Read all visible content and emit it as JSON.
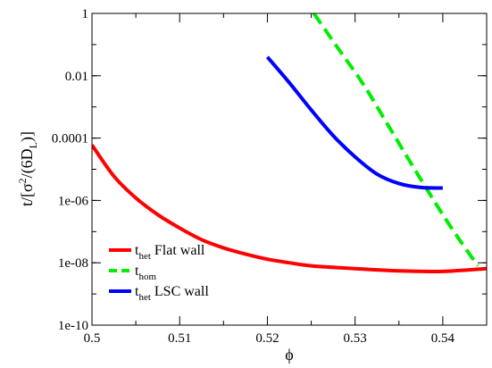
{
  "chart_data": {
    "type": "line",
    "xlabel": "ϕ",
    "ylabel": {
      "prefix": "t/[σ",
      "sup": "2",
      "middle": "/(6D",
      "sub": "L",
      "suffix": ")]"
    },
    "xlim": [
      0.5,
      0.545
    ],
    "ylim": [
      1e-10,
      1
    ],
    "yscale": "log",
    "x_ticks": [
      0.5,
      0.51,
      0.52,
      0.53,
      0.54
    ],
    "x_tick_labels": [
      "0.5",
      "0.51",
      "0.52",
      "0.53",
      "0.54"
    ],
    "y_ticks": [
      1e-10,
      1e-08,
      1e-06,
      0.0001,
      0.01,
      1
    ],
    "y_tick_labels": [
      "1e-10",
      "1e-08",
      "1e-06",
      "0.0001",
      "0.01",
      "1"
    ],
    "grid": false,
    "legend_position": "bottom-left",
    "series": [
      {
        "name": "Flat wall",
        "name_prefix": "t",
        "name_sub": "het",
        "color": "#ff0000",
        "dash": "solid",
        "x": [
          0.5,
          0.5025,
          0.505,
          0.5075,
          0.51,
          0.5125,
          0.515,
          0.5175,
          0.52,
          0.5225,
          0.525,
          0.53,
          0.535,
          0.54,
          0.545
        ],
        "y": [
          6e-05,
          6e-06,
          1.2e-06,
          3.5e-07,
          1.3e-07,
          5.5e-08,
          3e-08,
          1.9e-08,
          1.3e-08,
          1e-08,
          8e-09,
          6.5e-09,
          5.5e-09,
          5.3e-09,
          6.5e-09
        ]
      },
      {
        "name": "",
        "name_prefix": "t",
        "name_sub": "hom",
        "color": "#00ee00",
        "dash": "dashed",
        "x": [
          0.5253,
          0.528,
          0.531,
          0.534,
          0.537,
          0.54,
          0.542,
          0.544
        ],
        "y": [
          1,
          0.08,
          0.005,
          0.0002,
          8e-06,
          3.5e-07,
          5e-08,
          8e-09
        ]
      },
      {
        "name": "LSC wall",
        "name_prefix": "t",
        "name_sub": "het",
        "color": "#0000ff",
        "dash": "solid",
        "x": [
          0.52,
          0.5225,
          0.525,
          0.5275,
          0.53,
          0.5325,
          0.535,
          0.5375,
          0.54
        ],
        "y": [
          0.04,
          0.006,
          0.0008,
          0.00012,
          2.5e-05,
          7e-06,
          3.5e-06,
          2.6e-06,
          2.5e-06
        ]
      }
    ]
  }
}
